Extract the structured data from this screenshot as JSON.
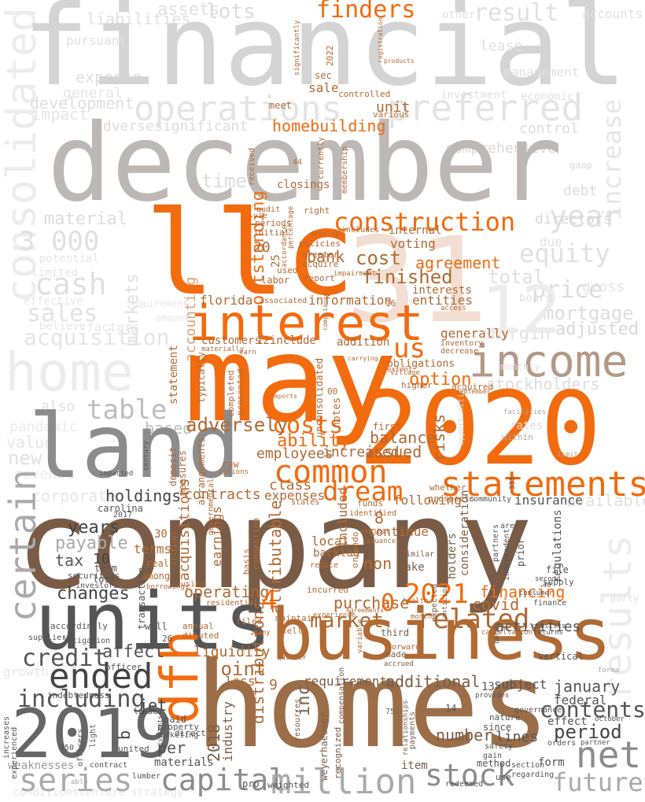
{
  "colors": {
    "orange": "#f26b0f",
    "brown": "#7a5c46",
    "tan": "#b08a6a",
    "dark_gray": "#555555",
    "mid_gray": "#8c8c8c",
    "light_gray": "#d6d6d6",
    "faint_gray": "#ececec",
    "pale_peach": "#f2ded2"
  },
  "words": {
    "financial": "financial",
    "december": "december",
    "llc": "llc",
    "n31": "31",
    "n12": "12",
    "may": "may",
    "interest": "interest",
    "income": "income",
    "us": "us",
    "land": "land",
    "n2020": "2020",
    "company": "company",
    "units": "units",
    "business": "business",
    "homes": "homes",
    "dfh": "dfh",
    "n2019": "2019",
    "ended": "ended",
    "statements": "statements",
    "common": "common",
    "dream": "dream",
    "construction": "construction",
    "finders": "finders",
    "operations": "operations",
    "preferred": "preferred",
    "consolidated": "consolidated",
    "home": "home",
    "cash": "cash",
    "sales": "sales",
    "acquisition": "acquisition",
    "table": "table",
    "certain": "certain",
    "credit": "credit",
    "including": "including",
    "series": "series",
    "capital": "capital",
    "million": "million",
    "stock": "stock",
    "future": "future",
    "net": "net",
    "contents": "contents",
    "period": "period",
    "n2021": "2021",
    "related": "related",
    "market": "market",
    "costs": "costs",
    "ability": "ability",
    "adversely": "adversely",
    "cost": "cost",
    "finished": "finished",
    "outstanding": "outstanding",
    "results": "results",
    "year": "year",
    "equity": "equity",
    "increase": "increase",
    "homebuilding": "homebuilding",
    "bank": "bank",
    "agreement": "agreement",
    "option": "option",
    "balance": "balance",
    "risks": "risks",
    "issued": "issued",
    "affect": "affect",
    "liquidity": "liquidity",
    "joint": "joint",
    "inc": "inc",
    "requirements": "requirements",
    "additional": "additional",
    "january": "january",
    "federal": "federal",
    "financing": "financing",
    "activities": "activities",
    "purchase": "purchase",
    "covid": "covid",
    "holdings": "holdings",
    "contracts": "contracts",
    "years": "years",
    "payable": "payable",
    "tax": "tax",
    "changes": "changes",
    "operating": "operating",
    "acquisitions": "acquisitions",
    "attributable": "attributable",
    "distributions": "distributions",
    "n2018": "2018",
    "industry": "industry",
    "jet": "jet",
    "per": "per",
    "materials": "materials",
    "number": "number",
    "lines": "lines",
    "subject": "subject",
    "employees": "employees",
    "increased": "increased",
    "class": "class",
    "expenses": "expenses",
    "florida": "florida",
    "information": "information",
    "entities": "entities",
    "interests": "interests",
    "customers": "customers",
    "include": "12include",
    "addition": "addition",
    "generally": "generally",
    "voting": "voting",
    "internal": "internal",
    "unit": "unit",
    "closings": "closings",
    "sale": "sale",
    "lots": "lots",
    "result": "result",
    "time": "time",
    "accounting": "accounting",
    "markets": "markets",
    "material": "material",
    "development": "development",
    "n3000": "3 000",
    "price": "price",
    "mortgage": "mortgage",
    "directors": "directors",
    "margin": "margin",
    "adjusted": "adjusted",
    "stockholders": "stockholders",
    "based": "based",
    "new": "new",
    "value": "value",
    "control": "control",
    "comprehensive": "comprehensive",
    "adverse": "adverse",
    "significant": "significant",
    "total": "total",
    "debt": "debt",
    "assets": "assets",
    "liabilities": "liabilities",
    "expense": "expense",
    "general": "general",
    "impact": "impact",
    "continue": "continue",
    "local": "local",
    "backlog": "backlog",
    "non": "non",
    "included": "included",
    "following": "following",
    "insurance": "insurance",
    "regulations": "regulations",
    "consideration": "consideration",
    "holders": "holders",
    "earnings": "earnings",
    "terms": "terms",
    "n8": "8",
    "n4": "4",
    "n0": "0",
    "n9": "9",
    "n30": "30",
    "n10": "10",
    "n13": "13",
    "n20": "20",
    "n25": "25",
    "b": "b",
    "less": "less",
    "effect": "effect",
    "form": "form",
    "item": "item",
    "make": "make",
    "available": "available",
    "also": "also",
    "impacted": "impacted",
    "weaknesses": "weaknesses",
    "labor": "labor",
    "report": "report",
    "greater": "greater",
    "acquire": "acquire",
    "initial": "initial",
    "periods": "periods",
    "policies": "policies",
    "existing": "existing",
    "used": "used",
    "right": "right",
    "includes": "includes",
    "audit": "audit",
    "meet": "meet",
    "various": "various",
    "controlled": "controlled",
    "sec": "sec",
    "n2022": "2022",
    "typically": "typically",
    "statement": "statement",
    "completed": "completed",
    "presented": "presented",
    "deposit": "deposit",
    "measures": "measures",
    "arrangements": "arrangements",
    "raw": "raw",
    "unconsolidated": "unconsolidated",
    "notes": "notes",
    "obligations": "obligations",
    "inventory": "inventory",
    "decrease": "decrease",
    "higher": "higher",
    "acquired": "acquired",
    "first": "first",
    "funds": "funds",
    "whether": "whether",
    "prospects": "prospects",
    "community": "community",
    "well": "well",
    "annual": "annual",
    "diluted": "diluted",
    "transaction": "transaction",
    "sell": "sell",
    "filed": "filed",
    "third": "third",
    "made": "made",
    "accrued": "accrued",
    "expected": "expected",
    "anticipated": "anticipated",
    "partners": "partners",
    "independent": "independent",
    "prior": "prior",
    "supply": "supply",
    "file": "file",
    "finance": "finance",
    "vertical": "vertical",
    "orders": "orders",
    "partner": "partner",
    "since": "since",
    "paid": "paid",
    "property": "property",
    "direct": "direct",
    "securities": "securities",
    "among": "among",
    "using": "using",
    "real": "real",
    "loss": "loss",
    "term": "term",
    "carolina": "carolina",
    "investors": "investors",
    "within": "within",
    "weyerhaeuser": "weyerhaeuser",
    "recognized": "recognized",
    "payments": "payments",
    "officer": "officer",
    "pro": "pro",
    "weighted": "weighted",
    "method": "method",
    "use": "use",
    "redeemed": "redeemed",
    "cancellation": "cancellation",
    "returns": "returns",
    "lumber": "lumber",
    "contract": "contract",
    "united": "united",
    "marketing": "marketing",
    "leases": "leases",
    "officers": "officers",
    "light": "light",
    "n450": "450",
    "increases": "increases",
    "experienced": "experienced",
    "growth": "growth",
    "conditions": "conditions",
    "venture": "venture",
    "strategy": "strategy",
    "nature": "nature",
    "governance": "governance",
    "section": "section",
    "regarding": "regarding",
    "safety": "safety",
    "gain": "gain",
    "n14": "14",
    "n75": "75",
    "n26": "26",
    "n16": "16",
    "n00": "00",
    "n44": "44",
    "residential": "residential",
    "resources": "resources",
    "n2017": "2017",
    "consists": "consists",
    "october": "october",
    "connection": "connection",
    "basis": "basis",
    "maintain": "maintain",
    "incurred": "incurred",
    "orlando": "orlando",
    "reduce": "reduce",
    "similar": "similar",
    "identified": "identified",
    "exhibit": "exhibit",
    "issuance": "issuance",
    "health": "health",
    "months": "months",
    "forward": "forward",
    "area": "area",
    "pandemic": "pandemic",
    "revenue": "revenue",
    "corporate": "corporate",
    "gross": "gross",
    "board": "board",
    "due": "due",
    "monthly": "monthly",
    "potential": "potential",
    "limited": "limited",
    "effective": "effective",
    "factors": "factors",
    "believe": "believe",
    "amount": "amount",
    "requirement": "requirement",
    "lease": "lease",
    "management": "management",
    "economic": "economic",
    "investment": "investment",
    "registration": "registration",
    "products": "products",
    "significantly": "significantly",
    "membership": "membership",
    "currently": "currently",
    "received": "received",
    "develop": "develop",
    "accordance": "accordance",
    "percentage": "percentage",
    "impairment": "impairment",
    "associated": "associated",
    "vie": "vie",
    "village": "village",
    "extent": "extent",
    "carrying": "carrying",
    "compliance": "compliance",
    "access": "access",
    "opportunities": "opportunities",
    "facilities": "facilities",
    "rates": "rates",
    "pursuant": "pursuant",
    "gaap": "gaap",
    "company_small": "company",
    "century": "century",
    "critical": "critical",
    "borrowings": "borrowings",
    "options": "options",
    "governmental": "governmental",
    "accordingly": "accordingly",
    "litigation": "litigation",
    "many": "many",
    "quarter": "quarter",
    "second": "second",
    "consumer": "consumer",
    "bonds": "bonds",
    "able": "able",
    "indebtedness": "indebtedness",
    "equivalents": "equivalents",
    "suppliers": "suppliers",
    "reports": "reports",
    "september": "september",
    "agreements": "agreements",
    "relationships": "relationships",
    "forma": "forma",
    "party": "party",
    "limit": "limit",
    "n333": "333",
    "states": "states",
    "provides": "provides",
    "n40": "40",
    "experience": "experience",
    "variable": "variable",
    "compensation": "compensation",
    "earn": "earn",
    "materially": "materially",
    "n2020_small": "2020",
    "accounts": "accounts",
    "other": "other"
  }
}
